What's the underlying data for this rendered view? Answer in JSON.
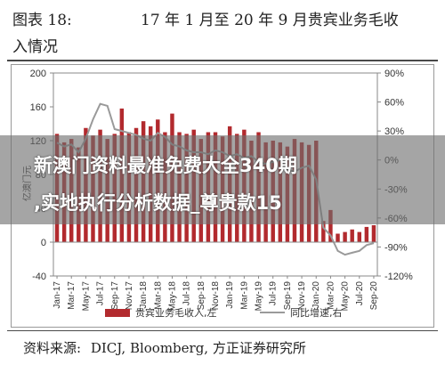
{
  "header": {
    "figure_label": "图表 18:",
    "title_line1": "17 年 1 月至 20 年 9 月贵宾业务毛收",
    "title_line2": "入情况"
  },
  "source": {
    "label": "资料来源:",
    "text": "DICJ, Bloomberg, 方正证券研究所"
  },
  "overlay": {
    "line1": "新澳门资料最准免费大全340期",
    "line2": ",实地执行分析数据_尊贵款15"
  },
  "colors": {
    "bar": "#b22a2e",
    "line": "#9a9a9a",
    "axis": "#888888",
    "text": "#333333"
  },
  "chart_data": {
    "type": "bar",
    "title": "",
    "ylabel": "亿澳门元",
    "y2label": "",
    "ylim": [
      -40,
      200
    ],
    "yticks": [
      -40,
      0,
      40,
      80,
      120,
      160,
      200
    ],
    "y2lim": [
      -120,
      90
    ],
    "y2ticks": [
      "90%",
      "60%",
      "30%",
      "0%",
      "-30%",
      "-60%",
      "-90%",
      "-120%"
    ],
    "y2tick_values": [
      90,
      60,
      30,
      0,
      -30,
      -60,
      -90,
      -120
    ],
    "xtick_labels": [
      "Jan-17",
      "Mar-17",
      "May-17",
      "Jul-17",
      "Sep-17",
      "Nov-17",
      "Jan-18",
      "Mar-18",
      "May-18",
      "Jul-18",
      "Sep-18",
      "Nov-18",
      "Jan-19",
      "Mar-19",
      "May-19",
      "Jul-19",
      "Sep-19",
      "Nov-19",
      "Jan-20",
      "Mar-20",
      "May-20",
      "Jul-20",
      "Sep-20"
    ],
    "categories": [
      "Jan-17",
      "Feb-17",
      "Mar-17",
      "Apr-17",
      "May-17",
      "Jun-17",
      "Jul-17",
      "Aug-17",
      "Sep-17",
      "Oct-17",
      "Nov-17",
      "Dec-17",
      "Jan-18",
      "Feb-18",
      "Mar-18",
      "Apr-18",
      "May-18",
      "Jun-18",
      "Jul-18",
      "Aug-18",
      "Sep-18",
      "Oct-18",
      "Nov-18",
      "Dec-18",
      "Jan-19",
      "Feb-19",
      "Mar-19",
      "Apr-19",
      "May-19",
      "Jun-19",
      "Jul-19",
      "Aug-19",
      "Sep-19",
      "Oct-19",
      "Nov-19",
      "Dec-19",
      "Jan-20",
      "Feb-20",
      "Mar-20",
      "Apr-20",
      "May-20",
      "Jun-20",
      "Jul-20",
      "Aug-20",
      "Sep-20"
    ],
    "series": [
      {
        "name": "贵宾业务毛收入,左",
        "type": "bar",
        "axis": "left",
        "values": [
          128,
          118,
          122,
          112,
          135,
          126,
          133,
          122,
          128,
          158,
          130,
          135,
          143,
          137,
          145,
          130,
          152,
          130,
          128,
          133,
          122,
          130,
          130,
          125,
          137,
          128,
          133,
          120,
          130,
          118,
          120,
          118,
          113,
          122,
          118,
          115,
          120,
          25,
          38,
          10,
          12,
          15,
          12,
          18,
          20
        ]
      },
      {
        "name": "同比增速,右",
        "type": "line",
        "axis": "right",
        "values": [
          18,
          14,
          16,
          8,
          22,
          42,
          58,
          56,
          32,
          30,
          28,
          26,
          22,
          20,
          28,
          24,
          16,
          14,
          10,
          8,
          8,
          6,
          10,
          8,
          4,
          6,
          2,
          4,
          -2,
          -4,
          -2,
          0,
          -10,
          -12,
          -8,
          -6,
          -20,
          -70,
          -78,
          -94,
          -98,
          -96,
          -94,
          -88,
          -86
        ]
      }
    ],
    "legend": "bottom",
    "grid": false
  }
}
